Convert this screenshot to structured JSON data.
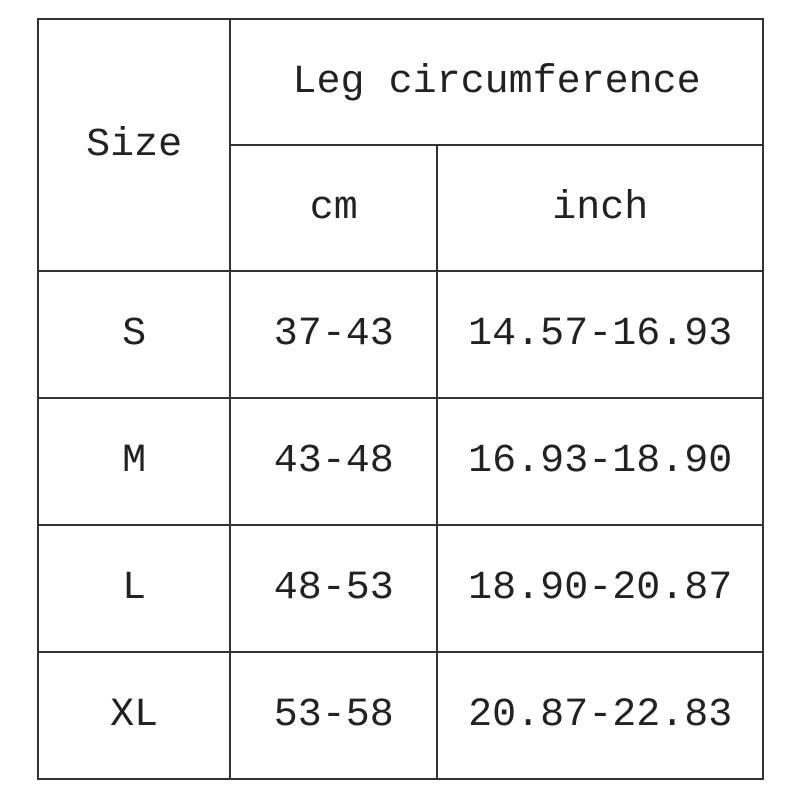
{
  "table": {
    "header": {
      "size": "Size",
      "group": "Leg circumference",
      "cm": "cm",
      "inch": "inch"
    },
    "rows": [
      {
        "size": "S",
        "cm": "37-43",
        "inch": "14.57-16.93"
      },
      {
        "size": "M",
        "cm": "43-48",
        "inch": "16.93-18.90"
      },
      {
        "size": "L",
        "cm": "48-53",
        "inch": "18.90-20.87"
      },
      {
        "size": "XL",
        "cm": "53-58",
        "inch": "20.87-22.83"
      }
    ]
  }
}
